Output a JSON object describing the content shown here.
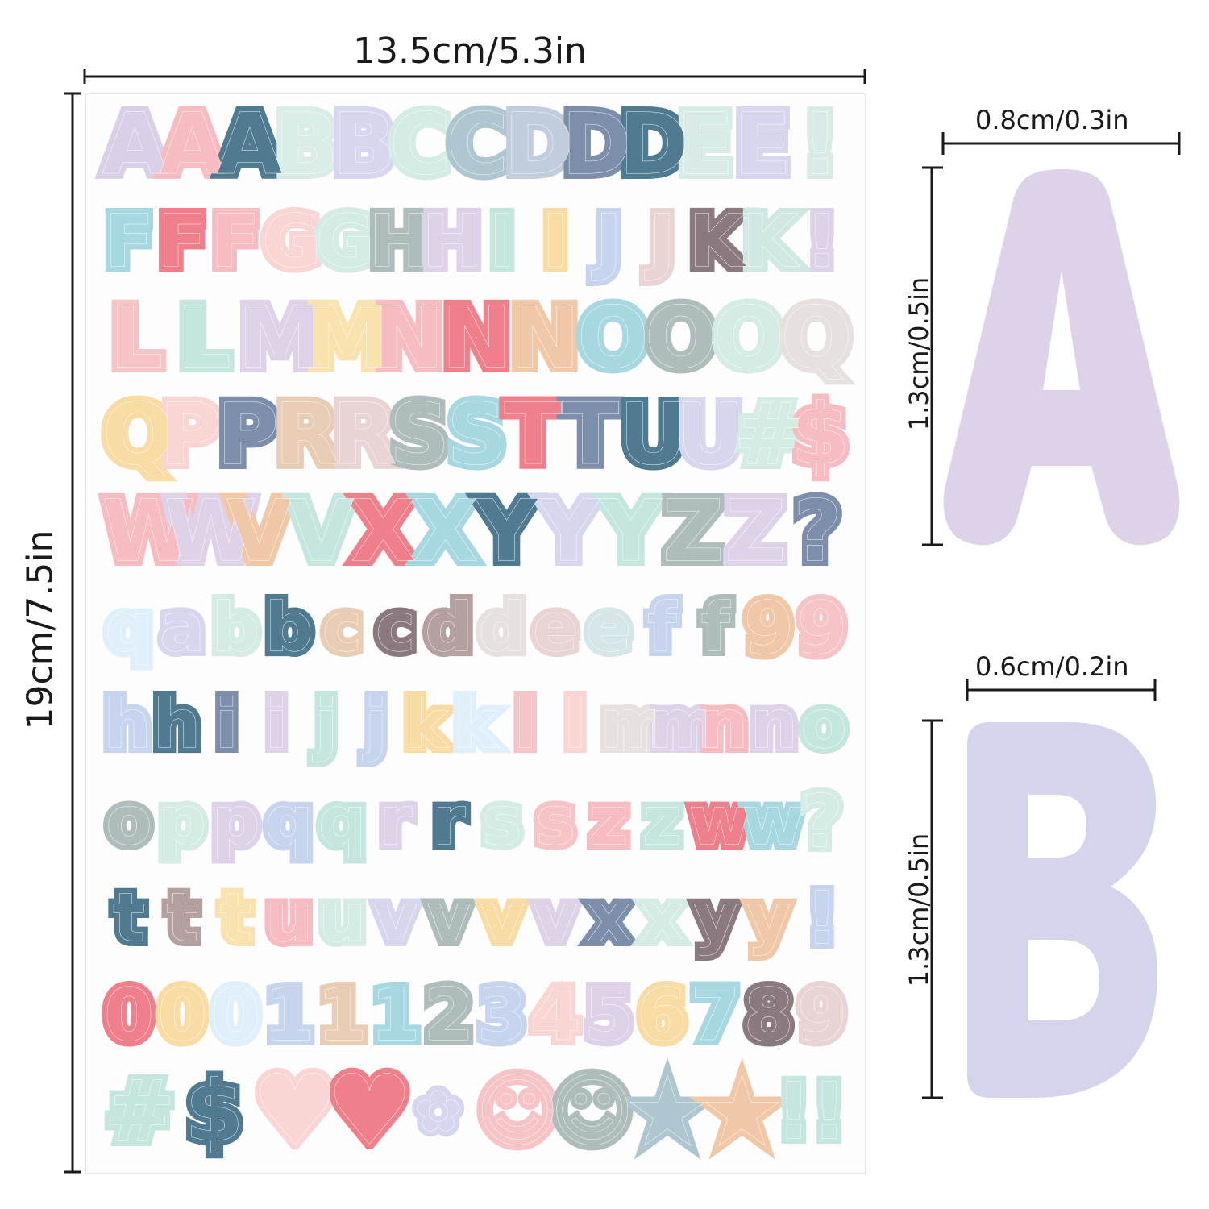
{
  "dimensions": {
    "sheet_width": "13.5cm/5.3in",
    "sheet_height": "19cm/7.5in",
    "letter_a_width": "0.8cm/0.3in",
    "letter_a_height": "1.3cm/0.5in",
    "letter_b_width": "0.6cm/0.2in",
    "letter_b_height": "1.3cm/0.5in"
  },
  "samples": {
    "letter_a": "A",
    "letter_b": "B",
    "letter_a_color": "#ddd2e8",
    "letter_b_color": "#d4d5ec"
  },
  "sheet": {
    "rows": [
      [
        [
          "A",
          "#d9d0e8"
        ],
        [
          "A",
          "#f6bcc2"
        ],
        [
          "A",
          "#4f7a90"
        ],
        [
          "B",
          "#d9ece6"
        ],
        [
          "B",
          "#d6d6ee"
        ],
        [
          "C",
          "#d4ece4"
        ],
        [
          "C",
          "#aec6cf"
        ],
        [
          "D",
          "#c1ccdc"
        ],
        [
          "D",
          "#7c8eaa"
        ],
        [
          "D",
          "#4f7a90"
        ],
        [
          "E",
          "#d8ebe6"
        ],
        [
          "E",
          "#d8d6ee"
        ],
        [
          "!",
          "#d8ebe6"
        ]
      ],
      [
        [
          "F",
          "#a7d8e2"
        ],
        [
          "F",
          "#ef7f8a"
        ],
        [
          "F",
          "#f6bcc2"
        ],
        [
          "G",
          "#f9d6d4"
        ],
        [
          "G",
          "#d4ece4"
        ],
        [
          "H",
          "#aebcbc"
        ],
        [
          "H",
          "#ddd2e8"
        ],
        [
          "I",
          "#c5e6df"
        ],
        [
          "I",
          "#f9dca4"
        ],
        [
          "J",
          "#c6d4ee"
        ],
        [
          "J",
          "#e8d4d4"
        ],
        [
          "K",
          "#8a7a80"
        ],
        [
          "K",
          "#cfe8e4"
        ],
        [
          "!",
          "#ddd2e8"
        ]
      ],
      [
        [
          "L",
          "#f6c4c6"
        ],
        [
          "L",
          "#c5e6df"
        ],
        [
          "M",
          "#ddd2e8"
        ],
        [
          "M",
          "#fae2ae"
        ],
        [
          "N",
          "#f6bcc2"
        ],
        [
          "N",
          "#ef7f8a"
        ],
        [
          "N",
          "#f0c8a8"
        ],
        [
          "O",
          "#a7d8e2"
        ],
        [
          "O",
          "#aebcbc"
        ],
        [
          "O",
          "#d4ece4"
        ],
        [
          "Q",
          "#e6e0de"
        ]
      ],
      [
        [
          "Q",
          "#f9dca4"
        ],
        [
          "P",
          "#f9d6d4"
        ],
        [
          "P",
          "#7c8eaa"
        ],
        [
          "R",
          "#e8ccb4"
        ],
        [
          "R",
          "#e8d4d4"
        ],
        [
          "S",
          "#aebcbc"
        ],
        [
          "S",
          "#a7d8e2"
        ],
        [
          "T",
          "#ef7f8a"
        ],
        [
          "T",
          "#7c8eaa"
        ],
        [
          "U",
          "#4f7a90"
        ],
        [
          "U",
          "#d6d6ee"
        ],
        [
          "#",
          "#d4ece4"
        ],
        [
          "$",
          "#f6bcc2"
        ]
      ],
      [
        [
          "W",
          "#f6bcc2"
        ],
        [
          "W",
          "#ddd2e8"
        ],
        [
          "V",
          "#f0c8a8"
        ],
        [
          "V",
          "#c5e6df"
        ],
        [
          "X",
          "#ef7f8a"
        ],
        [
          "X",
          "#a7d8e2"
        ],
        [
          "Y",
          "#4f7a90"
        ],
        [
          "Y",
          "#d6d6ee"
        ],
        [
          "Y",
          "#c5e6df"
        ],
        [
          "Z",
          "#aebcbc"
        ],
        [
          "Z",
          "#ddd2e8"
        ],
        [
          "?",
          "#7c8eaa"
        ]
      ],
      [
        [
          "q",
          "#e0f0fa"
        ],
        [
          "a",
          "#d6d6ee"
        ],
        [
          "b",
          "#d4ece4"
        ],
        [
          "b",
          "#4f7a90"
        ],
        [
          "c",
          "#e8ccb4"
        ],
        [
          "c",
          "#8a7a80"
        ],
        [
          "d",
          "#b4a0a0"
        ],
        [
          "d",
          "#e6e0de"
        ],
        [
          "e",
          "#e8d4d4"
        ],
        [
          "e",
          "#d4e6e8"
        ],
        [
          "f",
          "#c6d4ee"
        ],
        [
          "f",
          "#aebcbc"
        ],
        [
          "9",
          "#f0c8a8"
        ],
        [
          "9",
          "#f6c4c6"
        ]
      ],
      [
        [
          "h",
          "#c6d4ee"
        ],
        [
          "h",
          "#4f7a90"
        ],
        [
          "i",
          "#7c8eaa"
        ],
        [
          "i",
          "#ddd2e8"
        ],
        [
          "j",
          "#c5e6df"
        ],
        [
          "j",
          "#c6d4ee"
        ],
        [
          "k",
          "#f9dca4"
        ],
        [
          "k",
          "#e0f0fa"
        ],
        [
          "l",
          "#f6c4c6"
        ],
        [
          "l",
          "#f9d6d4"
        ],
        [
          "m",
          "#e6e0de"
        ],
        [
          "m",
          "#ddd2e8"
        ],
        [
          "n",
          "#f6bcc2"
        ],
        [
          "n",
          "#ddd2e8"
        ],
        [
          "o",
          "#c5e6df"
        ]
      ],
      [
        [
          "o",
          "#aebcbc"
        ],
        [
          "p",
          "#d4ece4"
        ],
        [
          "p",
          "#ddd2e8"
        ],
        [
          "q",
          "#c6d4ee"
        ],
        [
          "q",
          "#c5e6df"
        ],
        [
          "r",
          "#ddd2e8"
        ],
        [
          "r",
          "#4f7a90"
        ],
        [
          "s",
          "#d4ece4"
        ],
        [
          "s",
          "#f6c4c6"
        ],
        [
          "z",
          "#f6bcc2"
        ],
        [
          "z",
          "#c5e6df"
        ],
        [
          "w",
          "#ef7f8a"
        ],
        [
          "w",
          "#a7d8e2"
        ],
        [
          "?",
          "#d4ece4"
        ]
      ],
      [
        [
          "t",
          "#4f7a90"
        ],
        [
          "t",
          "#b4a0a0"
        ],
        [
          "t",
          "#fae2ae"
        ],
        [
          "u",
          "#f6bcc2"
        ],
        [
          "u",
          "#d4ece4"
        ],
        [
          "v",
          "#d6d6ee"
        ],
        [
          "v",
          "#aebcbc"
        ],
        [
          "v",
          "#f9dca4"
        ],
        [
          "v",
          "#ddd2e8"
        ],
        [
          "x",
          "#7c8eaa"
        ],
        [
          "x",
          "#d4ece4"
        ],
        [
          "y",
          "#8a7a80"
        ],
        [
          "y",
          "#f0c8a8"
        ],
        [
          "!",
          "#c6d4ee"
        ]
      ],
      [
        [
          "0",
          "#ef7f8a"
        ],
        [
          "0",
          "#f9dca4"
        ],
        [
          "0",
          "#e0f0fa"
        ],
        [
          "1",
          "#c6d4ee"
        ],
        [
          "1",
          "#e8ccb4"
        ],
        [
          "1",
          "#a7d8e2"
        ],
        [
          "2",
          "#aebcbc"
        ],
        [
          "3",
          "#c6d4ee"
        ],
        [
          "4",
          "#f9d6d4"
        ],
        [
          "5",
          "#ddd2e8"
        ],
        [
          "6",
          "#f9dca4"
        ],
        [
          "7",
          "#a7d8e2"
        ],
        [
          "8",
          "#8a7a80"
        ],
        [
          "9",
          "#e8d4d4"
        ]
      ],
      [
        [
          "#",
          "#c5e6df"
        ],
        [
          "$",
          "#4f7a90"
        ],
        [
          "♥",
          "#f9d6d4"
        ],
        [
          "♥",
          "#ef7f8a"
        ],
        [
          "✿",
          "#d6d6ee"
        ],
        [
          "☺",
          "#f6c4c6"
        ],
        [
          "☺",
          "#aebcbc"
        ],
        [
          "★",
          "#aec6cf"
        ],
        [
          "★",
          "#f0c8a8"
        ],
        [
          "!!",
          "#c5e6df"
        ]
      ]
    ]
  }
}
